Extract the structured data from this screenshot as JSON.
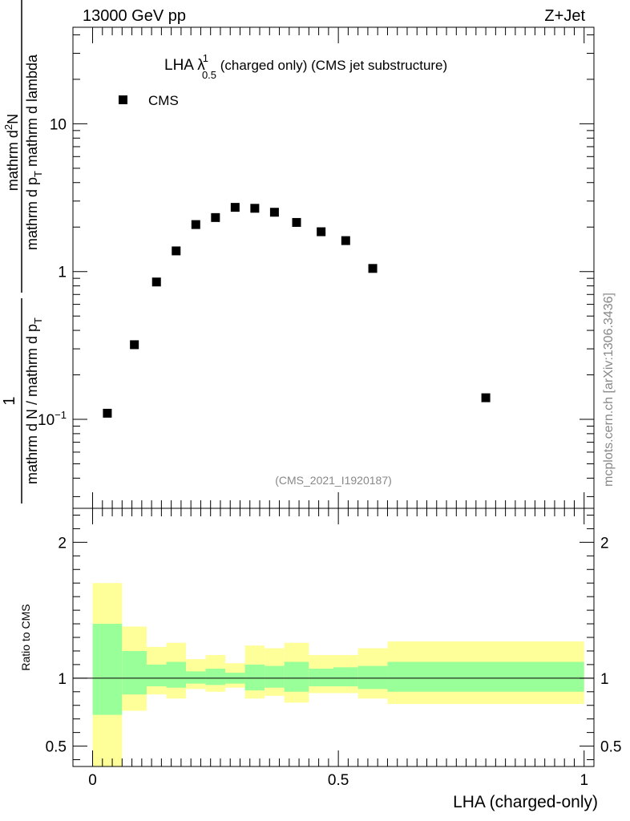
{
  "header": {
    "energy": "13000 GeV pp",
    "process": "Z+Jet"
  },
  "title": {
    "prefix": "LHA ",
    "lambda": "λ",
    "superscript": "1",
    "subscript": "0.5",
    "suffix": " (charged only) (CMS jet substructure)"
  },
  "analysis_id": "(CMS_2021_I1920187)",
  "side_label": "mcplots.cern.ch [arXiv:1306.3436]",
  "ylabel_main": {
    "one": "1",
    "denominator_a": "mathrm d N / mathrm d p",
    "denominator_sub": "T",
    "numerator_a": "mathrm d",
    "numerator_sup": "2",
    "numerator_b": "N",
    "fraction_mid": "mathrm d p",
    "fraction_sub": "T",
    "fraction_tail": " mathrm d lambda"
  },
  "ylabel_ratio": "Ratio to CMS",
  "xlabel": "LHA (charged-only)",
  "colors": {
    "band_outer": "#ffff99",
    "band_inner": "#99ff99",
    "marker": "#000000"
  },
  "chart_data": {
    "type": "scatter",
    "title": "LHA λ^1_0.5 (charged only) (CMS jet substructure)",
    "xlabel": "LHA (charged-only)",
    "ylabel": "1/(dN/dpT) d²N/(dpT dλ)",
    "x_range": [
      -0.04,
      1.02
    ],
    "main": {
      "yscale": "log",
      "ylim": [
        0.025,
        45
      ],
      "y_ticks": [
        {
          "value": 0.1,
          "base": "10",
          "exp": "−1"
        },
        {
          "value": 1,
          "label": "1"
        },
        {
          "value": 10,
          "label": "10"
        }
      ],
      "legend": "top-left",
      "series": [
        {
          "name": "CMS",
          "x": [
            0.03,
            0.085,
            0.13,
            0.17,
            0.21,
            0.25,
            0.29,
            0.33,
            0.37,
            0.415,
            0.465,
            0.515,
            0.57,
            0.8
          ],
          "y": [
            0.11,
            0.32,
            0.85,
            1.38,
            2.08,
            2.32,
            2.72,
            2.68,
            2.52,
            2.15,
            1.86,
            1.62,
            1.05,
            0.14
          ]
        }
      ]
    },
    "ratio": {
      "ylabel": "Ratio to CMS",
      "ylim": [
        0.35,
        2.25
      ],
      "y_ticks": [
        {
          "value": 0.5,
          "label": "0.5"
        },
        {
          "value": 1,
          "label": "1"
        },
        {
          "value": 2,
          "label": "2"
        }
      ],
      "x_ticks": [
        {
          "value": 0,
          "label": "0"
        },
        {
          "value": 0.5,
          "label": "0.5"
        },
        {
          "value": 1,
          "label": "1"
        }
      ],
      "bins": [
        {
          "lo": 0.0,
          "hi": 0.06,
          "inner": [
            0.73,
            1.4
          ],
          "outer": [
            0.35,
            1.7
          ]
        },
        {
          "lo": 0.06,
          "hi": 0.11,
          "inner": [
            0.88,
            1.2
          ],
          "outer": [
            0.76,
            1.38
          ]
        },
        {
          "lo": 0.11,
          "hi": 0.15,
          "inner": [
            0.94,
            1.1
          ],
          "outer": [
            0.88,
            1.23
          ]
        },
        {
          "lo": 0.15,
          "hi": 0.19,
          "inner": [
            0.93,
            1.12
          ],
          "outer": [
            0.85,
            1.26
          ]
        },
        {
          "lo": 0.19,
          "hi": 0.23,
          "inner": [
            0.96,
            1.05
          ],
          "outer": [
            0.92,
            1.14
          ]
        },
        {
          "lo": 0.23,
          "hi": 0.27,
          "inner": [
            0.95,
            1.07
          ],
          "outer": [
            0.9,
            1.17
          ]
        },
        {
          "lo": 0.27,
          "hi": 0.31,
          "inner": [
            0.96,
            1.04
          ],
          "outer": [
            0.93,
            1.11
          ]
        },
        {
          "lo": 0.31,
          "hi": 0.35,
          "inner": [
            0.91,
            1.1
          ],
          "outer": [
            0.85,
            1.24
          ]
        },
        {
          "lo": 0.35,
          "hi": 0.39,
          "inner": [
            0.93,
            1.09
          ],
          "outer": [
            0.87,
            1.22
          ]
        },
        {
          "lo": 0.39,
          "hi": 0.44,
          "inner": [
            0.9,
            1.12
          ],
          "outer": [
            0.82,
            1.26
          ]
        },
        {
          "lo": 0.44,
          "hi": 0.49,
          "inner": [
            0.94,
            1.07
          ],
          "outer": [
            0.89,
            1.17
          ]
        },
        {
          "lo": 0.49,
          "hi": 0.54,
          "inner": [
            0.94,
            1.08
          ],
          "outer": [
            0.89,
            1.17
          ]
        },
        {
          "lo": 0.54,
          "hi": 0.6,
          "inner": [
            0.92,
            1.09
          ],
          "outer": [
            0.85,
            1.22
          ]
        },
        {
          "lo": 0.6,
          "hi": 1.0,
          "inner": [
            0.9,
            1.12
          ],
          "outer": [
            0.81,
            1.27
          ]
        }
      ]
    }
  }
}
